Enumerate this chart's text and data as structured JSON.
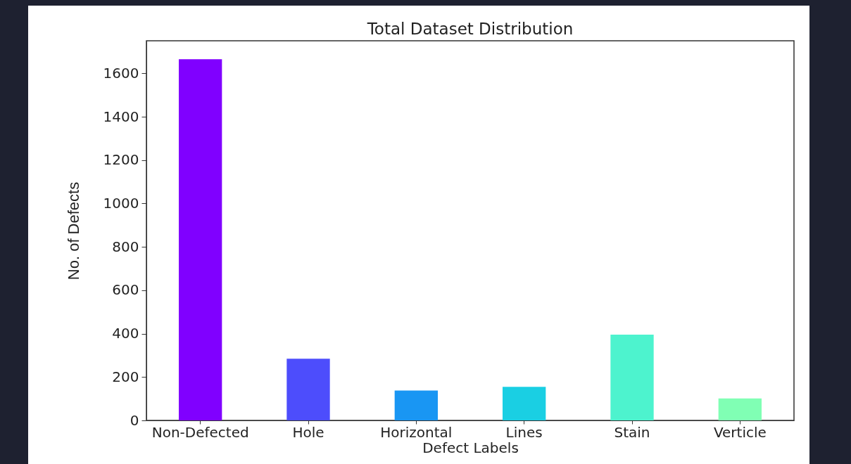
{
  "chart_data": {
    "type": "bar",
    "title": "Total Dataset Distribution",
    "xlabel": "Defect Labels",
    "ylabel": "No. of Defects",
    "categories": [
      "Non-Defected",
      "Hole",
      "Horizontal",
      "Lines",
      "Stain",
      "Verticle"
    ],
    "values": [
      1665,
      284,
      138,
      155,
      395,
      101
    ],
    "colors": [
      "#8000ff",
      "#4d4dfc",
      "#1996f3",
      "#1acfe3",
      "#4df3ce",
      "#80ffb4"
    ],
    "ylim": [
      0,
      1750
    ],
    "yticks": [
      0,
      200,
      400,
      600,
      800,
      1000,
      1200,
      1400,
      1600
    ],
    "grid": false,
    "legend": false
  }
}
